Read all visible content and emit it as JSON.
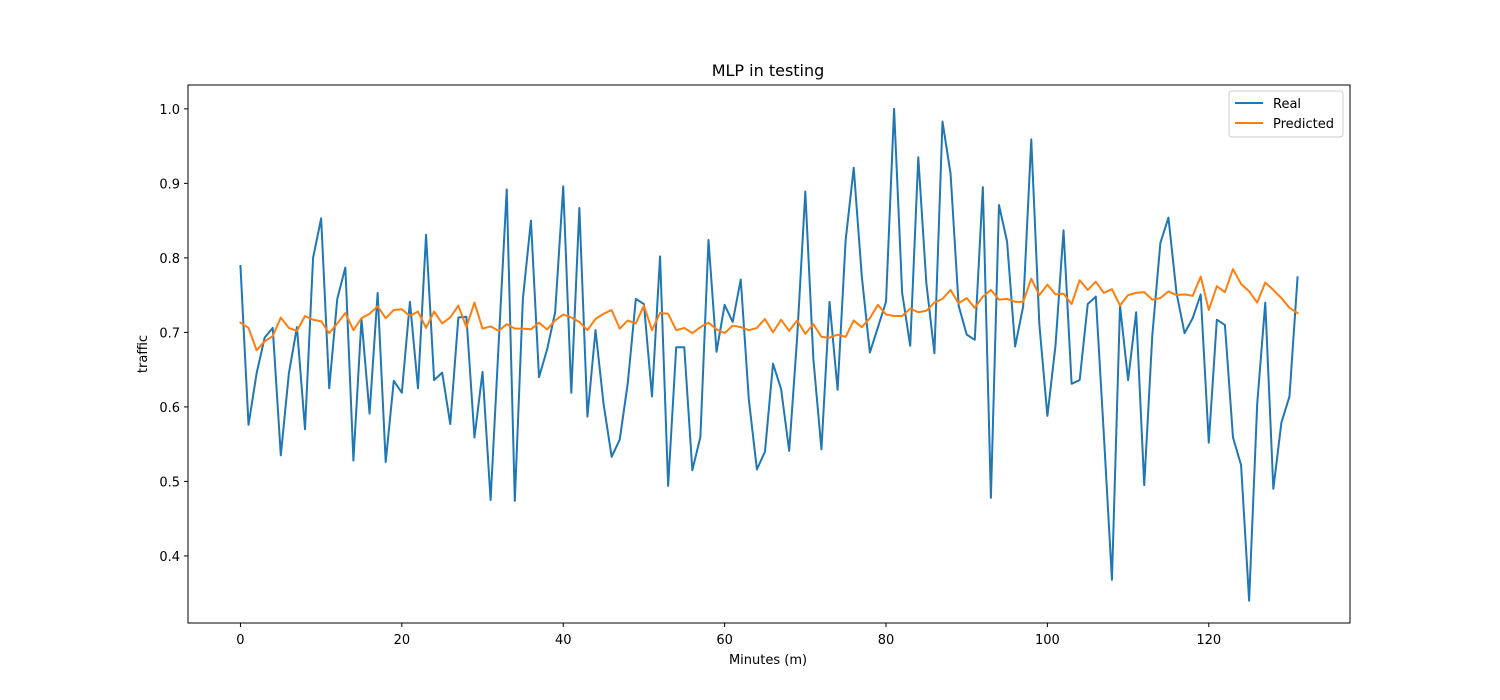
{
  "chart_data": {
    "type": "line",
    "title": "MLP in testing",
    "xlabel": "Minutes (m)",
    "ylabel": "traffic",
    "xlim": [
      -6.5,
      137.5
    ],
    "ylim": [
      0.31,
      1.032
    ],
    "xticks": [
      0,
      20,
      40,
      60,
      80,
      100,
      120
    ],
    "yticks": [
      0.4,
      0.5,
      0.6,
      0.7,
      0.8,
      0.9,
      1.0
    ],
    "ytick_labels": [
      "0.4",
      "0.5",
      "0.6",
      "0.7",
      "0.8",
      "0.9",
      "1.0"
    ],
    "legend": "top-right",
    "grid": false,
    "series": [
      {
        "name": "Real",
        "color": "#1f77b4",
        "values": [
          0.789,
          0.576,
          0.645,
          0.693,
          0.706,
          0.535,
          0.645,
          0.707,
          0.57,
          0.8,
          0.853,
          0.625,
          0.745,
          0.787,
          0.528,
          0.718,
          0.591,
          0.753,
          0.526,
          0.635,
          0.619,
          0.741,
          0.625,
          0.831,
          0.636,
          0.646,
          0.577,
          0.72,
          0.721,
          0.559,
          0.647,
          0.475,
          0.685,
          0.892,
          0.474,
          0.745,
          0.85,
          0.64,
          0.677,
          0.727,
          0.896,
          0.619,
          0.867,
          0.587,
          0.703,
          0.604,
          0.533,
          0.556,
          0.632,
          0.745,
          0.738,
          0.614,
          0.802,
          0.494,
          0.68,
          0.68,
          0.515,
          0.56,
          0.824,
          0.674,
          0.737,
          0.714,
          0.771,
          0.61,
          0.516,
          0.54,
          0.658,
          0.624,
          0.541,
          0.695,
          0.889,
          0.664,
          0.543,
          0.741,
          0.623,
          0.824,
          0.921,
          0.775,
          0.673,
          0.707,
          0.741,
          1.0,
          0.753,
          0.682,
          0.935,
          0.766,
          0.672,
          0.983,
          0.913,
          0.736,
          0.697,
          0.69,
          0.895,
          0.478,
          0.871,
          0.822,
          0.681,
          0.735,
          0.959,
          0.711,
          0.588,
          0.682,
          0.837,
          0.631,
          0.636,
          0.738,
          0.748,
          0.562,
          0.368,
          0.736,
          0.636,
          0.727,
          0.495,
          0.696,
          0.82,
          0.854,
          0.753,
          0.699,
          0.719,
          0.751,
          0.552,
          0.717,
          0.71,
          0.559,
          0.522,
          0.34,
          0.604,
          0.74,
          0.49,
          0.579,
          0.614,
          0.774
        ]
      },
      {
        "name": "Predicted",
        "color": "#ff7f0e",
        "values": [
          0.713,
          0.706,
          0.676,
          0.688,
          0.695,
          0.72,
          0.706,
          0.702,
          0.722,
          0.717,
          0.715,
          0.699,
          0.712,
          0.726,
          0.703,
          0.719,
          0.725,
          0.735,
          0.719,
          0.73,
          0.731,
          0.722,
          0.728,
          0.706,
          0.728,
          0.712,
          0.72,
          0.736,
          0.707,
          0.74,
          0.705,
          0.708,
          0.702,
          0.711,
          0.705,
          0.705,
          0.704,
          0.713,
          0.704,
          0.716,
          0.724,
          0.72,
          0.714,
          0.703,
          0.718,
          0.725,
          0.73,
          0.705,
          0.716,
          0.712,
          0.736,
          0.703,
          0.726,
          0.725,
          0.703,
          0.706,
          0.699,
          0.707,
          0.713,
          0.704,
          0.699,
          0.709,
          0.707,
          0.703,
          0.706,
          0.718,
          0.7,
          0.717,
          0.702,
          0.716,
          0.698,
          0.711,
          0.694,
          0.693,
          0.697,
          0.694,
          0.716,
          0.707,
          0.719,
          0.737,
          0.724,
          0.722,
          0.722,
          0.732,
          0.727,
          0.729,
          0.74,
          0.745,
          0.757,
          0.739,
          0.746,
          0.733,
          0.748,
          0.757,
          0.744,
          0.745,
          0.741,
          0.741,
          0.772,
          0.75,
          0.764,
          0.751,
          0.752,
          0.738,
          0.77,
          0.757,
          0.768,
          0.753,
          0.758,
          0.736,
          0.75,
          0.753,
          0.754,
          0.744,
          0.746,
          0.755,
          0.75,
          0.751,
          0.749,
          0.775,
          0.73,
          0.762,
          0.754,
          0.785,
          0.765,
          0.755,
          0.74,
          0.767,
          0.757,
          0.746,
          0.733,
          0.726
        ]
      }
    ]
  }
}
